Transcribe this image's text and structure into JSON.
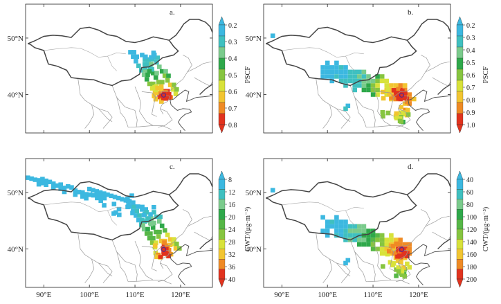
{
  "colors": {
    "psc": [
      "#3cb8e0",
      "#3fc0c0",
      "#7acb8c",
      "#2ea84a",
      "#86c540",
      "#d8e23a",
      "#f2c531",
      "#ef8a24",
      "#e1331e"
    ],
    "cwt": [
      "#3cb8e0",
      "#3fc0c0",
      "#7acb8c",
      "#2ea84a",
      "#56b747",
      "#86c540",
      "#d8e23a",
      "#f2c531",
      "#ef8a24",
      "#e1331e"
    ]
  },
  "panels": [
    {
      "id": "a",
      "label": "a.",
      "ylabels": [
        "50°N",
        "40°N"
      ],
      "xlabels": [],
      "colorbar": {
        "title": "PSCF",
        "type": "psc",
        "ticks": [
          "0.2",
          "0.3",
          "0.4",
          "0.5",
          "0.6",
          "0.7",
          "0.8"
        ]
      },
      "plume": {
        "type": "narrow"
      }
    },
    {
      "id": "b",
      "label": "b.",
      "ylabels": [
        "50°N",
        "40°N"
      ],
      "xlabels": [],
      "colorbar": {
        "title": "PSCF",
        "type": "psc",
        "ticks": [
          "0.2",
          "0.3",
          "0.4",
          "0.5",
          "0.6",
          "0.7",
          "0.8",
          "0.9",
          "1.0"
        ]
      },
      "plume": {
        "type": "wide"
      }
    },
    {
      "id": "c",
      "label": "c.",
      "ylabels": [
        "50°N",
        "40°N"
      ],
      "xlabels": [
        "90°E",
        "100°E",
        "110°E",
        "120°E"
      ],
      "colorbar": {
        "title": "CWT/(μg·m⁻³)",
        "type": "cwt",
        "ticks": [
          "8",
          "12",
          "16",
          "20",
          "24",
          "28",
          "32",
          "36",
          "40"
        ]
      },
      "plume": {
        "type": "narrow_north"
      }
    },
    {
      "id": "d",
      "label": "d.",
      "ylabels": [
        "50°N",
        "40°N"
      ],
      "xlabels": [
        "90°E",
        "100°E",
        "110°E",
        "120°E"
      ],
      "colorbar": {
        "title": "CWT/(μg·m⁻³)",
        "type": "cwt",
        "ticks": [
          "40",
          "60",
          "80",
          "100",
          "120",
          "140",
          "160",
          "180",
          "200"
        ]
      },
      "plume": {
        "type": "wide"
      }
    }
  ]
}
